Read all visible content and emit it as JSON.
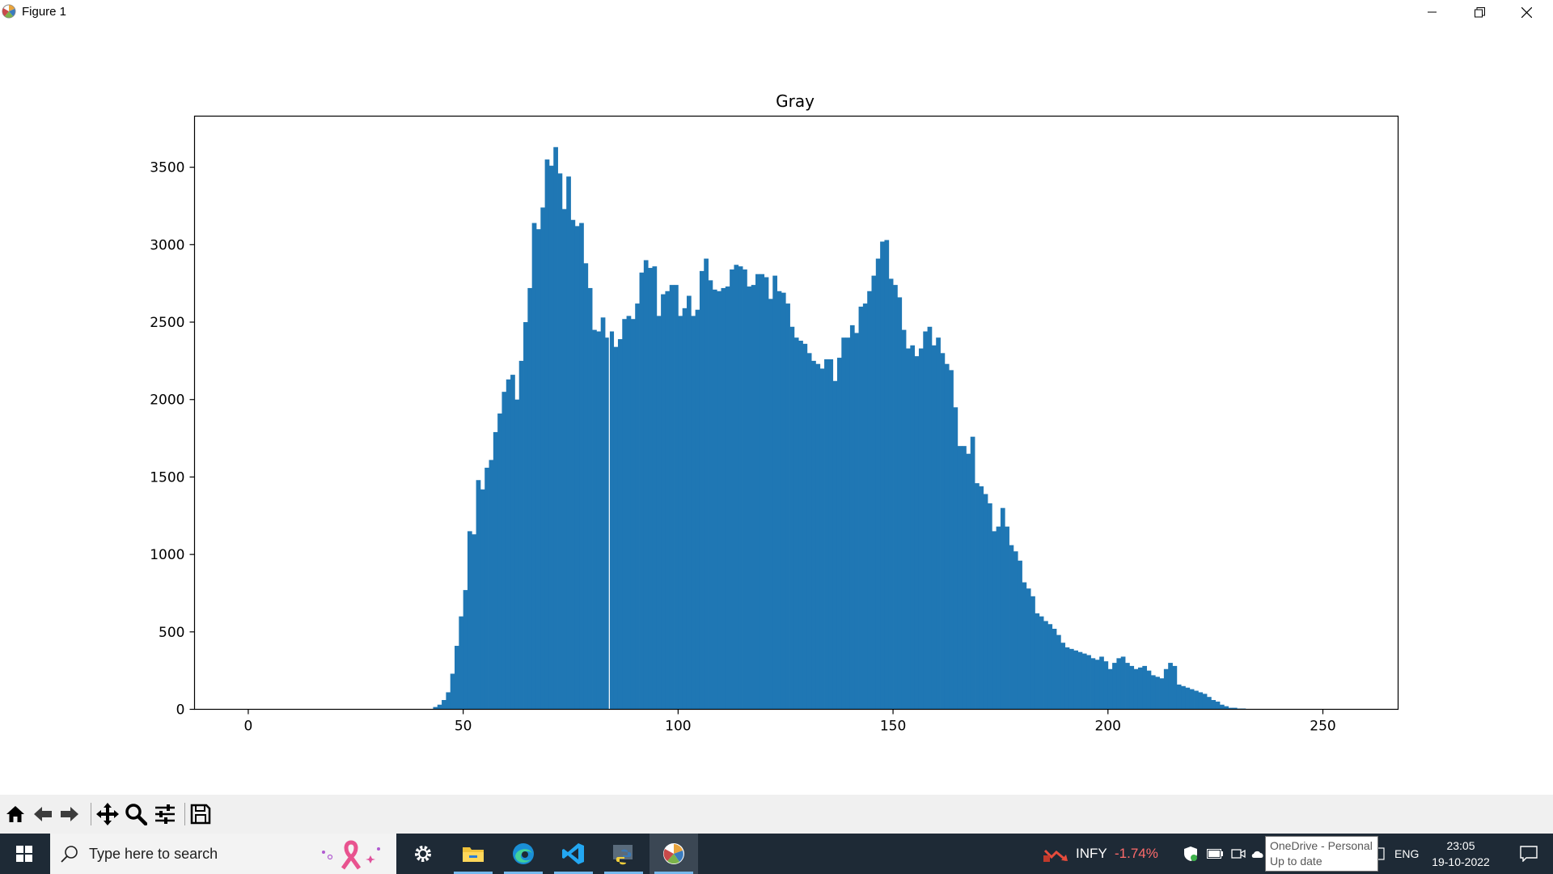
{
  "window": {
    "title": "Figure 1",
    "icon": "matplotlib-icon",
    "controls": [
      "minimize-icon",
      "restore-icon",
      "close-icon"
    ]
  },
  "chart_data": {
    "type": "bar",
    "title": "Gray",
    "xlabel": "",
    "ylabel": "",
    "xlim": [
      -12.5,
      267.5
    ],
    "ylim": [
      0,
      3830
    ],
    "xticks": [
      0,
      50,
      100,
      150,
      200,
      250
    ],
    "yticks": [
      0,
      500,
      1000,
      1500,
      2000,
      2500,
      3000,
      3500
    ],
    "bin_start": 43,
    "bin_width": 1,
    "values": [
      15,
      30,
      60,
      110,
      230,
      410,
      600,
      770,
      1150,
      1130,
      1480,
      1420,
      1560,
      1610,
      1790,
      1910,
      2050,
      2130,
      2160,
      2000,
      2250,
      2500,
      2720,
      3140,
      3100,
      3240,
      3550,
      3510,
      3630,
      3460,
      3230,
      3440,
      3160,
      3120,
      3140,
      2880,
      2720,
      2450,
      2440,
      2530,
      2400,
      2440,
      2340,
      2390,
      2520,
      2540,
      2520,
      2620,
      2820,
      2900,
      2850,
      2860,
      2540,
      2680,
      2700,
      2740,
      2740,
      2540,
      2590,
      2670,
      2540,
      2580,
      2830,
      2910,
      2770,
      2710,
      2700,
      2720,
      2730,
      2840,
      2870,
      2860,
      2840,
      2730,
      2740,
      2810,
      2810,
      2790,
      2650,
      2800,
      2700,
      2690,
      2620,
      2470,
      2400,
      2380,
      2360,
      2300,
      2250,
      2230,
      2200,
      2260,
      2260,
      2120,
      2270,
      2400,
      2400,
      2480,
      2430,
      2600,
      2620,
      2700,
      2800,
      2910,
      3020,
      3030,
      2780,
      2740,
      2660,
      2450,
      2330,
      2350,
      2280,
      2330,
      2440,
      2470,
      2350,
      2400,
      2300,
      2230,
      2190,
      1950,
      1700,
      1700,
      1650,
      1760,
      1460,
      1440,
      1390,
      1330,
      1150,
      1180,
      1300,
      1180,
      1060,
      1020,
      960,
      820,
      780,
      730,
      620,
      600,
      570,
      550,
      520,
      480,
      430,
      400,
      390,
      380,
      370,
      360,
      350,
      330,
      320,
      340,
      310,
      260,
      300,
      330,
      340,
      300,
      280,
      260,
      270,
      280,
      250,
      220,
      210,
      200,
      260,
      300,
      280,
      160,
      150,
      140,
      130,
      120,
      110,
      100,
      80,
      60,
      50,
      30,
      20,
      10,
      10,
      5,
      5,
      0
    ],
    "gap_at": 84,
    "color": "#1f77b4"
  },
  "toolbar": {
    "tools": [
      "home-icon",
      "back-arrow-icon",
      "forward-arrow-icon",
      "pan-icon",
      "zoom-icon",
      "configure-subplots-icon",
      "save-icon"
    ]
  },
  "taskbar": {
    "search_placeholder": "Type here to search",
    "apps": [
      "settings-icon",
      "file-explorer-icon",
      "edge-icon",
      "vscode-icon",
      "python-icon",
      "matplotlib-icon"
    ],
    "stock_symbol": "INFY",
    "stock_change": "-1.74%",
    "language": "ENG",
    "time": "23:05",
    "date": "19-10-2022"
  },
  "tooltip": {
    "line1": "OneDrive - Personal",
    "line2": "Up to date"
  }
}
